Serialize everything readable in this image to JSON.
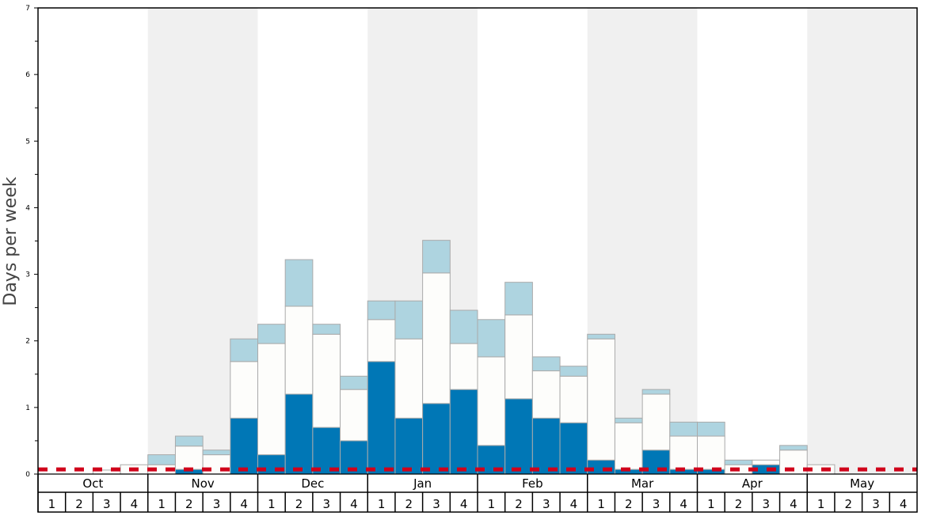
{
  "chart_data": {
    "type": "bar",
    "stacked": true,
    "title": "",
    "ylabel": "Days per week",
    "xlabel": "",
    "ylim": [
      0,
      7
    ],
    "yticks": [
      0,
      1,
      2,
      3,
      4,
      5,
      6,
      7
    ],
    "months": [
      "Oct",
      "Nov",
      "Dec",
      "Jan",
      "Feb",
      "Mar",
      "Apr",
      "May"
    ],
    "weeks": [
      "1",
      "2",
      "3",
      "4"
    ],
    "shaded_months": [
      "Nov",
      "Jan",
      "Mar",
      "May"
    ],
    "reference_line": {
      "value": 0.07,
      "style": "dashed",
      "color": "#d0021b"
    },
    "series": [
      {
        "name": "dark",
        "color": "#0077b6",
        "values": [
          0,
          0,
          0,
          0,
          0,
          0.07,
          0,
          0.84,
          0.29,
          1.2,
          0.7,
          0.5,
          1.69,
          0.84,
          1.06,
          1.27,
          0.43,
          1.13,
          0.84,
          0.77,
          0.21,
          0.07,
          0.36,
          0.07,
          0.07,
          0,
          0.14,
          0,
          0,
          0,
          0,
          0
        ]
      },
      {
        "name": "white",
        "color": "#fdfdfb",
        "values": [
          0,
          0,
          0.06,
          0.14,
          0.14,
          0.35,
          0.29,
          0.85,
          1.67,
          1.32,
          1.4,
          0.77,
          0.63,
          1.19,
          1.96,
          0.69,
          1.33,
          1.26,
          0.71,
          0.7,
          1.82,
          0.7,
          0.84,
          0.5,
          0.5,
          0.14,
          0.07,
          0.36,
          0.14,
          0,
          0,
          0
        ]
      },
      {
        "name": "light",
        "color": "#aed4e0",
        "values": [
          0,
          0,
          0,
          0,
          0.15,
          0.15,
          0.07,
          0.34,
          0.29,
          0.7,
          0.15,
          0.2,
          0.28,
          0.57,
          0.49,
          0.5,
          0.56,
          0.49,
          0.21,
          0.15,
          0.07,
          0.07,
          0.07,
          0.21,
          0.21,
          0.07,
          0,
          0.07,
          0,
          0,
          0,
          0
        ]
      }
    ]
  }
}
